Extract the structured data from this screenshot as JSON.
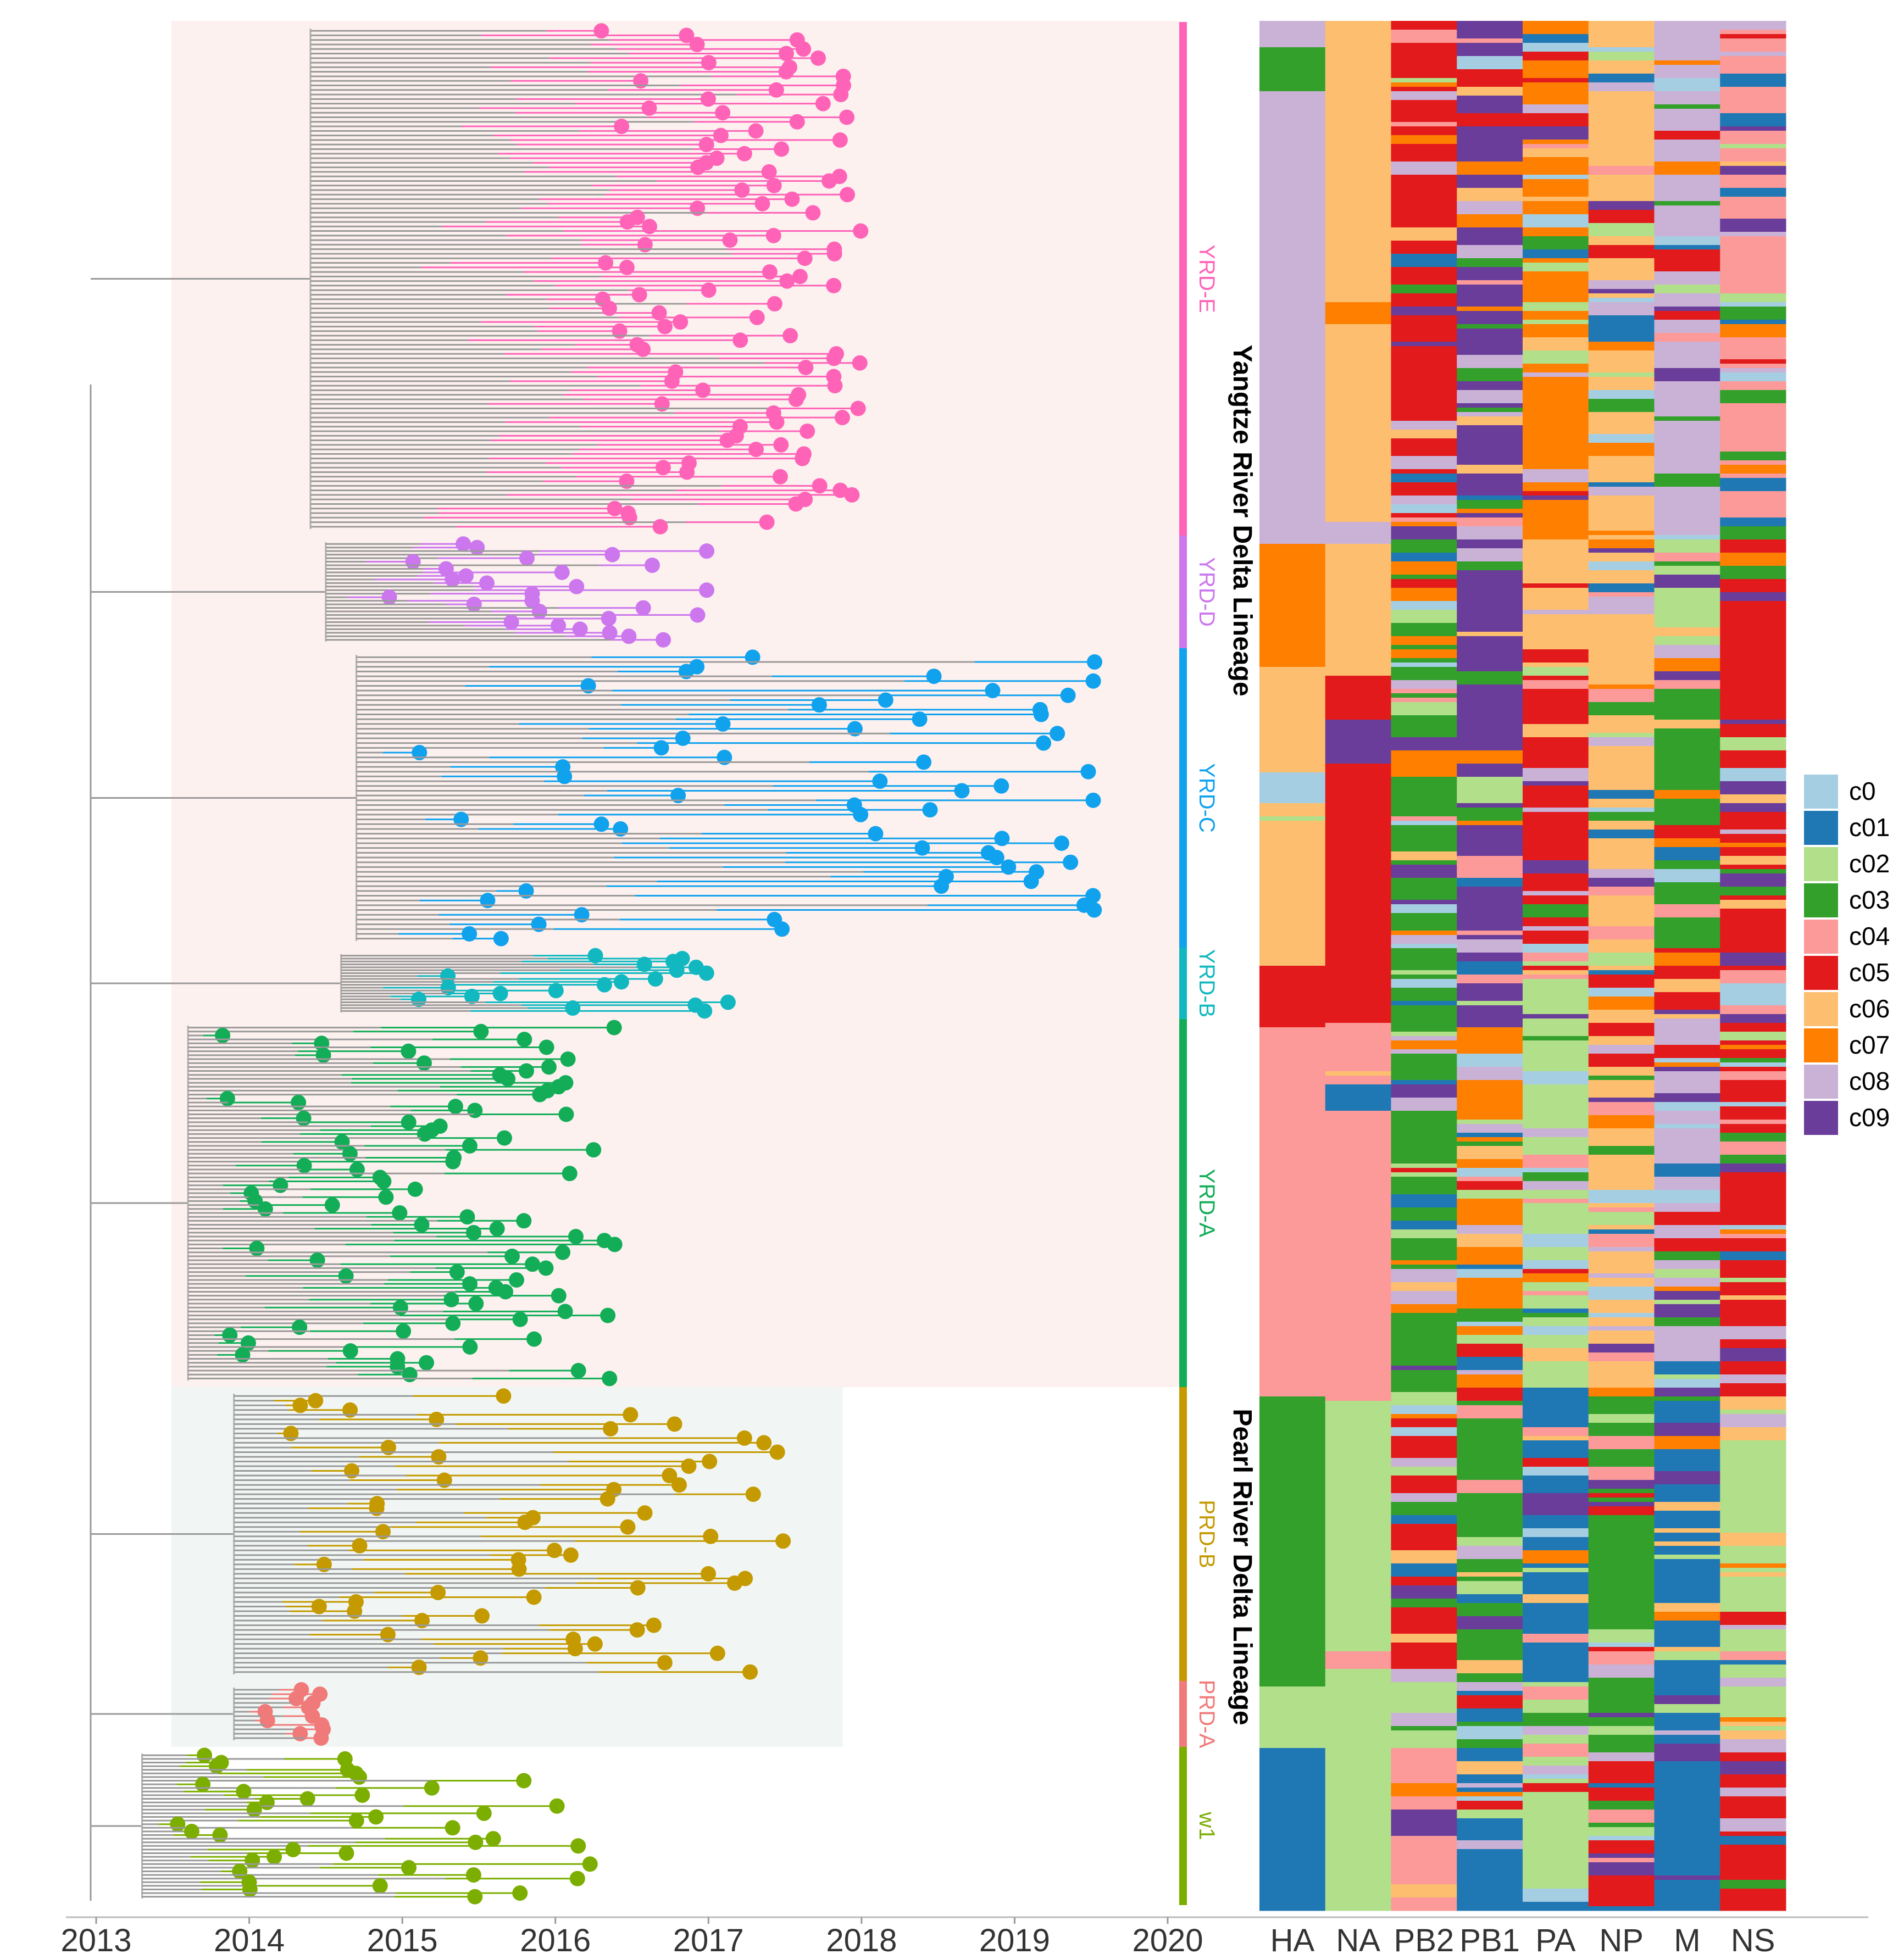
{
  "chart_data": {
    "type": "phylogenetic-tree-with-heatmap",
    "time_axis": {
      "ticks": [
        "2013",
        "2014",
        "2015",
        "2016",
        "2017",
        "2018",
        "2019",
        "2020"
      ],
      "range": [
        2013,
        2020
      ]
    },
    "lineages": [
      {
        "name": "Yangtze River Delta Lineage",
        "background": "#fdf1ef",
        "clades": [
          "YRD-E",
          "YRD-D",
          "YRD-C",
          "YRD-B",
          "YRD-A"
        ]
      },
      {
        "name": "Pearl River Delta Lineage",
        "background": "#f1f6f4",
        "clades": [
          "PRD-B",
          "PRD-A",
          "w1"
        ]
      }
    ],
    "clades": [
      {
        "name": "YRD-E",
        "color": "#ff63b8",
        "tips": 110,
        "date_range": [
          2016.3,
          2018.0
        ]
      },
      {
        "name": "YRD-D",
        "color": "#cc77ee",
        "tips": 28,
        "date_range": [
          2014.9,
          2017.0
        ]
      },
      {
        "name": "YRD-C",
        "color": "#11a2ee",
        "tips": 60,
        "date_range": [
          2015.1,
          2019.7
        ]
      },
      {
        "name": "YRD-B",
        "color": "#11b8c0",
        "tips": 20,
        "date_range": [
          2015.1,
          2017.4
        ]
      },
      {
        "name": "YRD-A",
        "color": "#13ad58",
        "tips": 90,
        "date_range": [
          2013.7,
          2016.4
        ]
      },
      {
        "name": "PRD-B",
        "color": "#c49a00",
        "tips": 60,
        "date_range": [
          2014.2,
          2017.5
        ]
      },
      {
        "name": "PRD-A",
        "color": "#f07a7a",
        "tips": 12,
        "date_range": [
          2014.1,
          2014.5
        ]
      },
      {
        "name": "w1",
        "color": "#7cae00",
        "tips": 40,
        "date_range": [
          2013.5,
          2016.3
        ]
      }
    ],
    "heatmap": {
      "columns": [
        "HA",
        "NA",
        "PB2",
        "PB1",
        "PA",
        "NP",
        "M",
        "NS"
      ],
      "dominant_by_clade": {
        "YRD-E": [
          "c08",
          "c06",
          "c05",
          "c09",
          "c07",
          "c06",
          "c08",
          "c04"
        ],
        "YRD-D": [
          "c07",
          "c06",
          "c03",
          "c09",
          "c06",
          "c06",
          "c02",
          "c05"
        ],
        "YRD-C": [
          "c06",
          "c05",
          "c03",
          "c09",
          "c05",
          "c06",
          "c03",
          "c05"
        ],
        "YRD-B": [
          "c05",
          "c05",
          "c03",
          "c09",
          "c02",
          "c06",
          "c05",
          "c04"
        ],
        "YRD-A": [
          "c04",
          "c04",
          "c03",
          "c07",
          "c02",
          "c06",
          "c08",
          "c05"
        ],
        "PRD-B": [
          "c03",
          "c02",
          "c05",
          "c03",
          "c01",
          "c03",
          "c01",
          "c02"
        ],
        "PRD-A": [
          "c02",
          "c02",
          "c02",
          "c03",
          "c02",
          "c03",
          "c01",
          "c02"
        ],
        "w1": [
          "c01",
          "c02",
          "c04",
          "c01",
          "c02",
          "c05",
          "c01",
          "c05"
        ]
      }
    },
    "legend": [
      {
        "label": "c0",
        "color": "#a6cee3"
      },
      {
        "label": "c01",
        "color": "#1f78b4"
      },
      {
        "label": "c02",
        "color": "#b2df8a"
      },
      {
        "label": "c03",
        "color": "#33a02c"
      },
      {
        "label": "c04",
        "color": "#fb9a99"
      },
      {
        "label": "c05",
        "color": "#e31a1c"
      },
      {
        "label": "c06",
        "color": "#fdbf6f"
      },
      {
        "label": "c07",
        "color": "#ff7f00"
      },
      {
        "label": "c08",
        "color": "#cab2d6"
      },
      {
        "label": "c09",
        "color": "#6a3d9a"
      }
    ]
  }
}
